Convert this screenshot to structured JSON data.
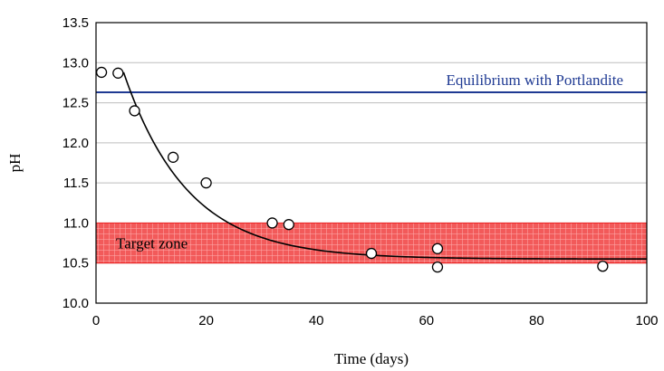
{
  "chart_data": {
    "type": "scatter",
    "title": "",
    "xlabel": "Time (days)",
    "ylabel": "pH",
    "xlim": [
      0,
      100
    ],
    "ylim": [
      10.0,
      13.5
    ],
    "x_ticks": [
      0,
      20,
      40,
      60,
      80,
      100
    ],
    "y_ticks": [
      "10.0",
      "10.5",
      "11.0",
      "11.5",
      "12.0",
      "12.5",
      "13.0",
      "13.5"
    ],
    "grid": "horizontal",
    "series": [
      {
        "name": "",
        "marker": "open-circle",
        "points": [
          {
            "x": 1,
            "y": 12.88
          },
          {
            "x": 4,
            "y": 12.87
          },
          {
            "x": 7,
            "y": 12.4
          },
          {
            "x": 14,
            "y": 11.82
          },
          {
            "x": 20,
            "y": 11.5
          },
          {
            "x": 32,
            "y": 11.0
          },
          {
            "x": 35,
            "y": 10.98
          },
          {
            "x": 50,
            "y": 10.62
          },
          {
            "x": 62,
            "y": 10.68
          },
          {
            "x": 62,
            "y": 10.45
          },
          {
            "x": 92,
            "y": 10.46
          }
        ]
      }
    ],
    "trend_curve": {
      "kind": "exponential-decay",
      "x_start": 5,
      "x_end": 100,
      "y_start": 12.88,
      "y_plateau": 10.55,
      "decay_per_day": 0.086
    },
    "reference_line": {
      "label": "Equilibrium with Portlandite",
      "y": 12.63,
      "color": "#1f3a93"
    },
    "zone": {
      "label": "Target zone",
      "y_min": 10.5,
      "y_max": 11.0,
      "color": "#ee2222"
    }
  }
}
